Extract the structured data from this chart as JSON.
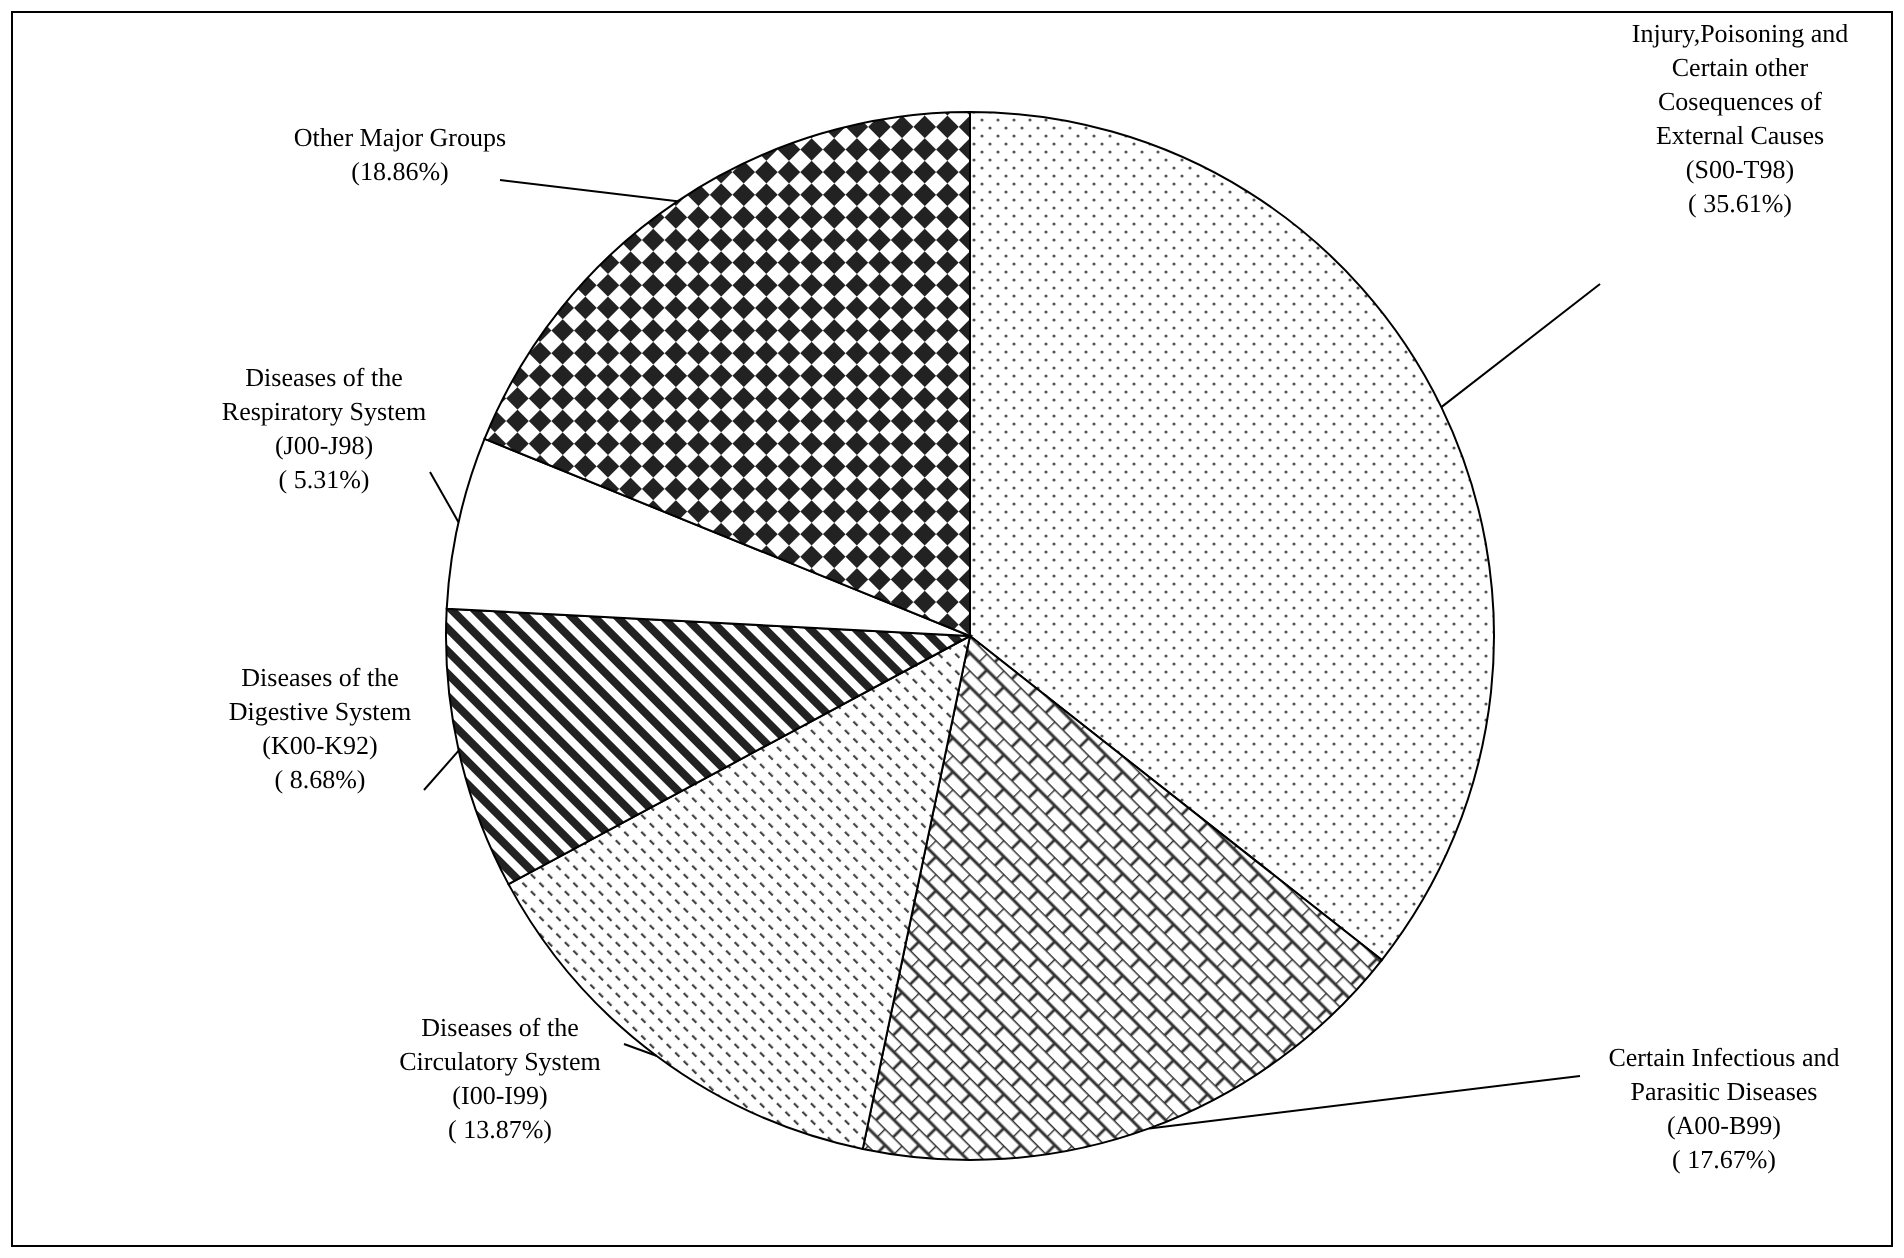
{
  "chart_data": {
    "type": "pie",
    "categories": [
      "Injury,Poisoning and Certain other Cosequences of External Causes (S00-T98)",
      "Certain Infectious and Parasitic Diseases (A00-B99)",
      "Diseases of the Circulatory System (I00-I99)",
      "Diseases of the Digestive System (K00-K92)",
      "Diseases of the Respiratory System (J00-J98)",
      "Other Major Groups"
    ],
    "values": [
      35.61,
      17.67,
      13.87,
      8.68,
      5.31,
      18.86
    ],
    "value_labels": [
      "( 35.61%)",
      "( 17.67%)",
      "( 13.87%)",
      "( 8.68%)",
      "( 5.31%)",
      "(18.86%)"
    ],
    "colors": [
      "#ffffff",
      "#ffffff",
      "#ffffff",
      "#ffffff",
      "#ffffff",
      "#ffffff"
    ]
  }
}
